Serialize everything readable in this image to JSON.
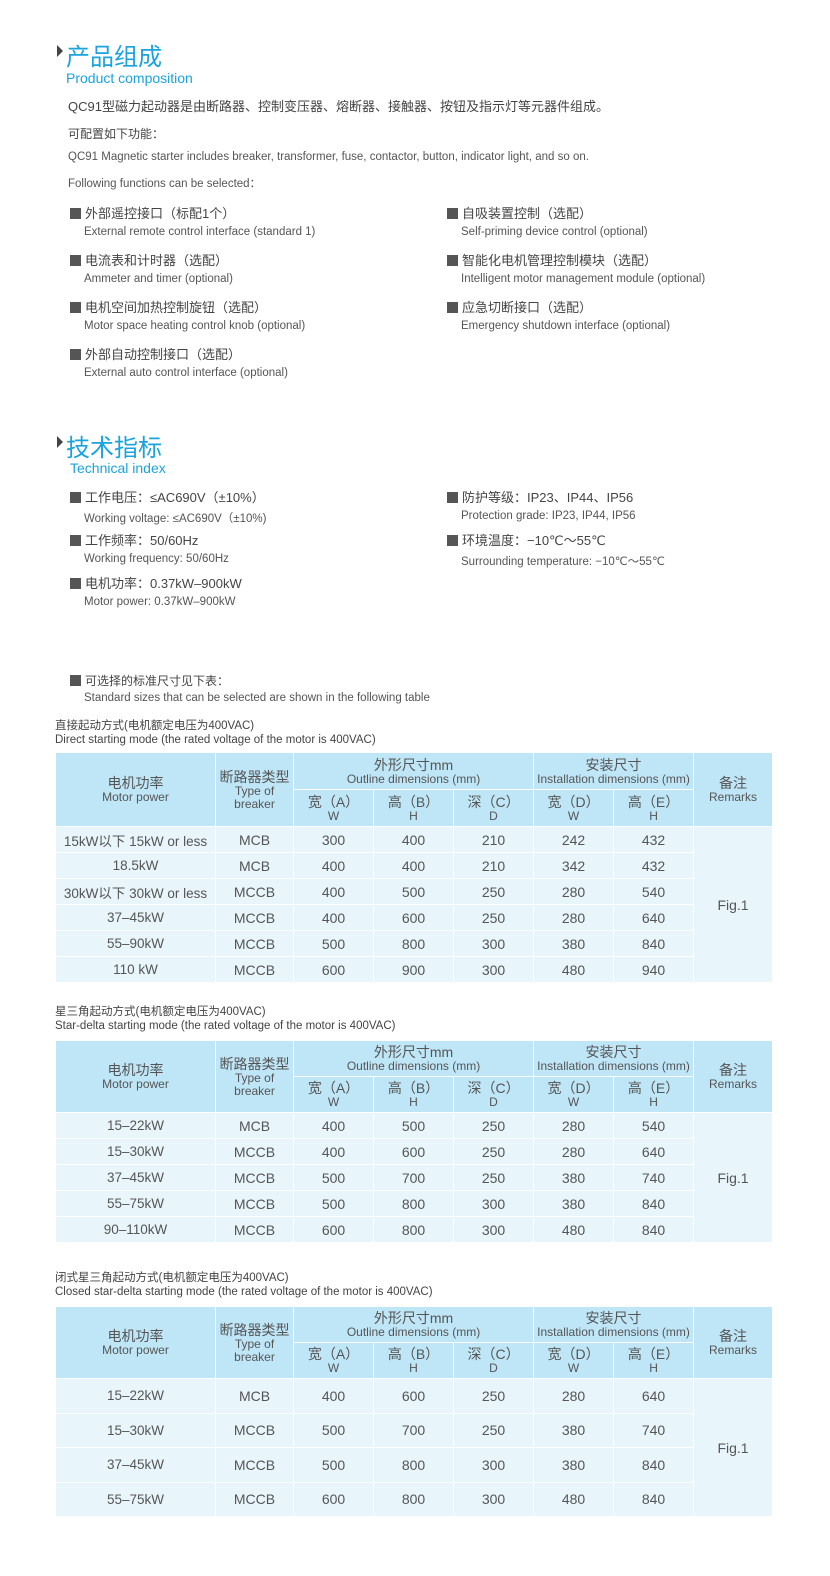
{
  "composition": {
    "title": "产品组成",
    "subtitle": "Product composition",
    "para_zh": "QC91型磁力起动器是由断路器、控制变压器、熔断器、接触器、按钮及指示灯等元器件组成。",
    "config_zh": "可配置如下功能：",
    "para_en": "QC91 Magnetic starter includes breaker, transformer, fuse, contactor, button, indicator light, and so on.",
    "config_en": "Following functions can be selected：",
    "left": [
      {
        "zh": "外部遥控接口（标配1个）",
        "en": "External remote control interface (standard 1)"
      },
      {
        "zh": "电流表和计时器（选配）",
        "en": "Ammeter and timer (optional)"
      },
      {
        "zh": "电机空间加热控制旋钮（选配）",
        "en": "Motor space heating control knob (optional)"
      },
      {
        "zh": "外部自动控制接口（选配）",
        "en": "External auto control interface (optional)"
      }
    ],
    "right": [
      {
        "zh": "自吸装置控制（选配）",
        "en": "Self-priming device control (optional)"
      },
      {
        "zh": "智能化电机管理控制模块（选配）",
        "en": "Intelligent motor management module (optional)"
      },
      {
        "zh": "应急切断接口（选配）",
        "en": "Emergency shutdown interface (optional)"
      }
    ]
  },
  "technical": {
    "title": "技术指标",
    "subtitle": "Technical index",
    "left": [
      {
        "zh": "工作电压：≤AC690V（±10%）",
        "en": "Working voltage: ≤AC690V（±10%)"
      },
      {
        "zh": "工作频率：50/60Hz",
        "en": "Working frequency: 50/60Hz"
      },
      {
        "zh": "电机功率：0.37kW–900kW",
        "en": "Motor power: 0.37kW–900kW"
      }
    ],
    "right": [
      {
        "zh": "防护等级：IP23、IP44、IP56",
        "en": "Protection grade: IP23, IP44, IP56"
      },
      {
        "zh": "环境温度：−10℃～55℃",
        "en": "Surrounding temperature: −10℃～55℃"
      }
    ],
    "note_zh": "可选择的标准尺寸见下表：",
    "note_en": "Standard sizes that can be selected are shown in the following table"
  },
  "header": {
    "motor_zh": "电机功率",
    "motor_en": "Motor power",
    "breaker_zh": "断路器类型",
    "breaker_en": "Type of breaker",
    "outline_zh": "外形尺寸mm",
    "outline_en": "Outline dimensions (mm)",
    "install_zh": "安装尺寸",
    "install_en": "Installation dimensions (mm)",
    "remarks_zh": "备注",
    "remarks_en": "Remarks",
    "sub": [
      [
        "宽（A）",
        "W"
      ],
      [
        "高（B）",
        "H"
      ],
      [
        "深（C）",
        "D"
      ],
      [
        "宽（D）",
        "W"
      ],
      [
        "高（E）",
        "H"
      ]
    ]
  },
  "tables": [
    {
      "caption_zh": "直接起动方式(电机额定电压为400VAC)",
      "caption_en": "Direct starting mode (the rated voltage of the motor is 400VAC)",
      "remark": "Fig.1",
      "rows": [
        [
          "15kW以下 15kW or less",
          "MCB",
          "300",
          "400",
          "210",
          "242",
          "432"
        ],
        [
          "18.5kW",
          "MCB",
          "400",
          "400",
          "210",
          "342",
          "432"
        ],
        [
          "30kW以下 30kW or less",
          "MCCB",
          "400",
          "500",
          "250",
          "280",
          "540"
        ],
        [
          "37–45kW",
          "MCCB",
          "400",
          "600",
          "250",
          "280",
          "640"
        ],
        [
          "55–90kW",
          "MCCB",
          "500",
          "800",
          "300",
          "380",
          "840"
        ],
        [
          "110 kW",
          "MCCB",
          "600",
          "900",
          "300",
          "480",
          "940"
        ]
      ]
    },
    {
      "caption_zh": "星三角起动方式(电机额定电压为400VAC)",
      "caption_en": "Star-delta starting mode (the rated voltage of the motor is 400VAC)",
      "remark": "Fig.1",
      "rows": [
        [
          "15–22kW",
          "MCB",
          "400",
          "500",
          "250",
          "280",
          "540"
        ],
        [
          "15–30kW",
          "MCCB",
          "400",
          "600",
          "250",
          "280",
          "640"
        ],
        [
          "37–45kW",
          "MCCB",
          "500",
          "700",
          "250",
          "380",
          "740"
        ],
        [
          "55–75kW",
          "MCCB",
          "500",
          "800",
          "300",
          "380",
          "840"
        ],
        [
          "90–110kW",
          "MCCB",
          "600",
          "800",
          "300",
          "480",
          "840"
        ]
      ]
    },
    {
      "caption_zh": "闭式星三角起动方式(电机额定电压为400VAC)",
      "caption_en": "Closed star-delta starting mode (the rated voltage of the motor is 400VAC)",
      "remark": "Fig.1",
      "rows": [
        [
          "15–22kW",
          "MCB",
          "400",
          "600",
          "250",
          "280",
          "640"
        ],
        [
          "15–30kW",
          "MCCB",
          "500",
          "700",
          "250",
          "380",
          "740"
        ],
        [
          "37–45kW",
          "MCCB",
          "500",
          "800",
          "300",
          "380",
          "840"
        ],
        [
          "55–75kW",
          "MCCB",
          "600",
          "800",
          "300",
          "480",
          "840"
        ]
      ]
    }
  ],
  "colors": {
    "accent": "#1aa3dc",
    "table_header": "#bfe6f7",
    "table_body": "#e8f6fc"
  }
}
